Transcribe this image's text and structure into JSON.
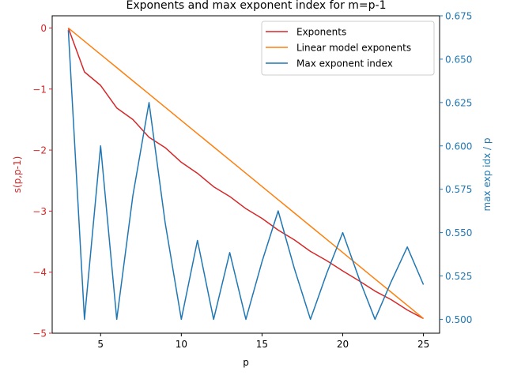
{
  "chart_data": {
    "type": "line",
    "title": "Exponents and max exponent index for m=p-1",
    "xlabel": "p",
    "ylabel_left": "s(p,p-1)",
    "ylabel_right": "max exp idx / p",
    "xlim": [
      2,
      26
    ],
    "ylim_left": [
      -5,
      0.2
    ],
    "ylim_right": [
      0.492,
      0.675
    ],
    "xticks": [
      5,
      10,
      15,
      20,
      25
    ],
    "yticks_left": [
      0,
      -1,
      -2,
      -3,
      -4,
      -5
    ],
    "yticks_left_labels": [
      "0",
      "−1",
      "−2",
      "−3",
      "−4",
      "−5"
    ],
    "yticks_right": [
      0.5,
      0.525,
      0.55,
      0.575,
      0.6,
      0.625,
      0.65,
      0.675
    ],
    "yticks_right_labels": [
      "0.500",
      "0.525",
      "0.550",
      "0.575",
      "0.600",
      "0.625",
      "0.650",
      "0.675"
    ],
    "grid": false,
    "legend_position": "top-right",
    "colors": {
      "left_axis": "#d62728",
      "right_axis": "#1f77b4"
    },
    "x": [
      3,
      4,
      5,
      6,
      7,
      8,
      9,
      10,
      11,
      12,
      13,
      14,
      15,
      16,
      17,
      18,
      19,
      20,
      21,
      22,
      23,
      24,
      25
    ],
    "series": [
      {
        "name": "Exponents",
        "axis": "left",
        "color": "#d62728",
        "values": [
          0,
          -0.72,
          -0.94,
          -1.31,
          -1.5,
          -1.79,
          -1.96,
          -2.2,
          -2.38,
          -2.6,
          -2.76,
          -2.96,
          -3.12,
          -3.31,
          -3.47,
          -3.66,
          -3.81,
          -3.98,
          -4.14,
          -4.31,
          -4.45,
          -4.62,
          -4.76
        ]
      },
      {
        "name": "Linear model exponents",
        "axis": "left",
        "color": "#ff7f0e",
        "values": [
          0,
          -0.2164,
          -0.4327,
          -0.6491,
          -0.8655,
          -1.0818,
          -1.2982,
          -1.5145,
          -1.7309,
          -1.9473,
          -2.1636,
          -2.38,
          -2.5964,
          -2.8127,
          -3.0291,
          -3.2455,
          -3.4618,
          -3.6782,
          -3.8945,
          -4.1109,
          -4.3273,
          -4.5436,
          -4.76
        ]
      },
      {
        "name": "Max exponent index",
        "axis": "right",
        "color": "#1f77b4",
        "values": [
          0.6667,
          0.5,
          0.6,
          0.5,
          0.5714,
          0.625,
          0.5556,
          0.5,
          0.5455,
          0.5,
          0.5385,
          0.5,
          0.5333,
          0.5625,
          0.5294,
          0.5,
          0.5263,
          0.55,
          0.5238,
          0.5,
          0.5217,
          0.5417,
          0.52
        ]
      }
    ]
  }
}
